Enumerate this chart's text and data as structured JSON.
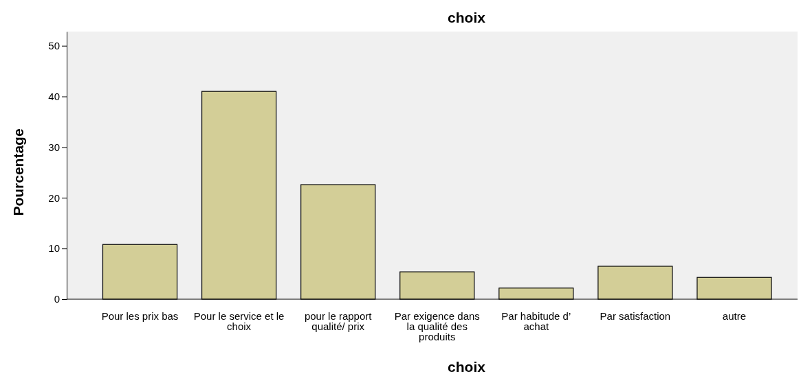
{
  "chart_data": {
    "type": "bar",
    "title": "choix",
    "xlabel": "choix",
    "ylabel": "Pourcentage",
    "categories": [
      "Pour les prix bas",
      "Pour le service et le choix",
      "pour le rapport qualité/ prix",
      "Par exigence dans la qualité des produits",
      "Par habitude d’ achat",
      "Par satisfaction",
      "autre"
    ],
    "values": [
      10.8,
      41.0,
      22.6,
      5.4,
      2.2,
      6.5,
      4.3
    ],
    "color": "#d3ce97",
    "ylim": [
      0,
      52.8
    ],
    "yticks": [
      0,
      10,
      20,
      30,
      40,
      50
    ],
    "grid": false
  }
}
